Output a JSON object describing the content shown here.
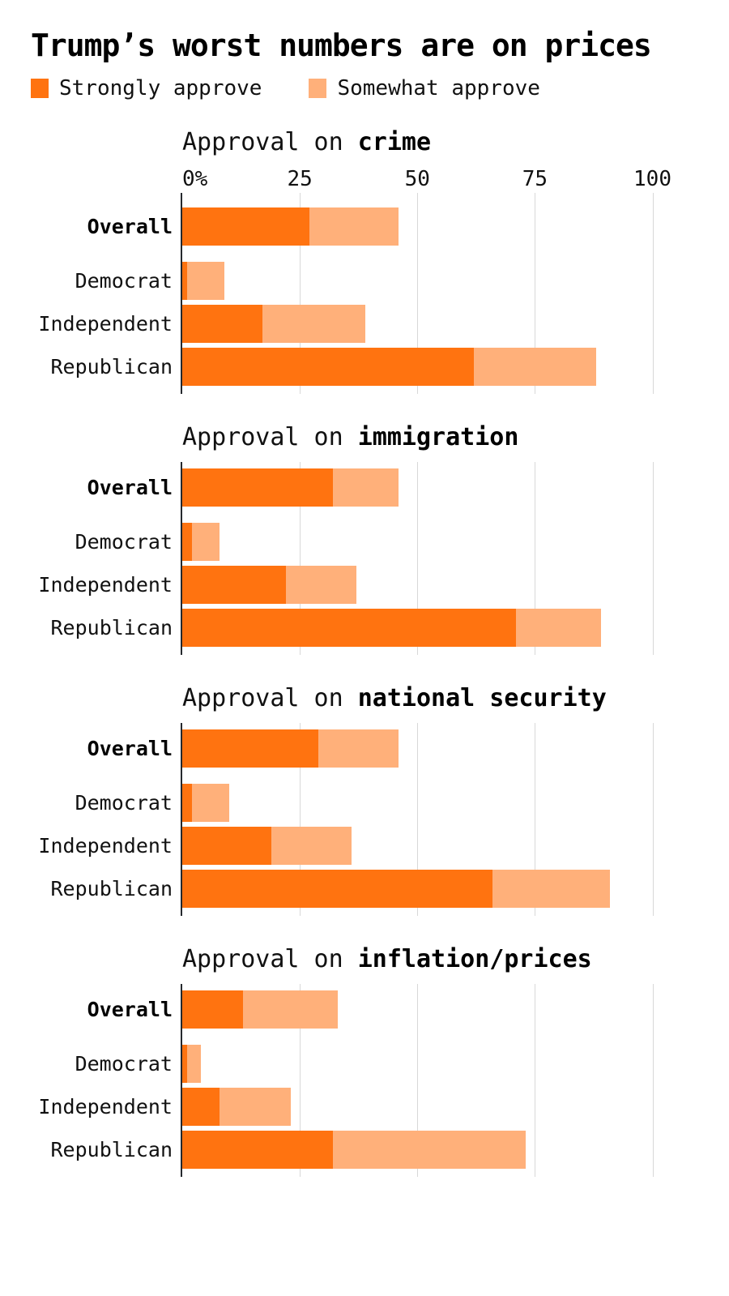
{
  "page": {
    "title": "Trump’s worst numbers are on prices"
  },
  "legend": {
    "items": [
      {
        "key": "strongly",
        "label": "Strongly approve",
        "color": "#ff7310"
      },
      {
        "key": "somewhat",
        "label": "Somewhat approve",
        "color": "#ffb07a"
      }
    ]
  },
  "colors": {
    "strongly": "#ff7310",
    "somewhat": "#ffb07a",
    "axis_line": "#25292e",
    "gridline": "#d8d8d8"
  },
  "axis": {
    "max": 100,
    "ticks": [
      {
        "value": 0,
        "label": "0%"
      },
      {
        "value": 25,
        "label": "25"
      },
      {
        "value": 50,
        "label": "50"
      },
      {
        "value": 75,
        "label": "75"
      },
      {
        "value": 100,
        "label": "100"
      }
    ]
  },
  "chart_data": [
    {
      "type": "bar",
      "orientation": "horizontal",
      "stacked": true,
      "title_prefix": "Approval on ",
      "topic": "crime",
      "categories": [
        "Overall",
        "Democrat",
        "Independent",
        "Republican"
      ],
      "series": [
        {
          "name": "Strongly approve",
          "values": [
            27,
            1,
            17,
            62
          ]
        },
        {
          "name": "Somewhat approve",
          "values": [
            19,
            8,
            22,
            26
          ]
        }
      ],
      "totals": [
        46,
        9,
        39,
        88
      ],
      "xlim": [
        0,
        100
      ],
      "show_axis_labels": true,
      "grid": true
    },
    {
      "type": "bar",
      "orientation": "horizontal",
      "stacked": true,
      "title_prefix": "Approval on ",
      "topic": "immigration",
      "categories": [
        "Overall",
        "Democrat",
        "Independent",
        "Republican"
      ],
      "series": [
        {
          "name": "Strongly approve",
          "values": [
            32,
            2,
            22,
            71
          ]
        },
        {
          "name": "Somewhat approve",
          "values": [
            14,
            6,
            15,
            18
          ]
        }
      ],
      "totals": [
        46,
        8,
        37,
        89
      ],
      "xlim": [
        0,
        100
      ],
      "show_axis_labels": false,
      "grid": true
    },
    {
      "type": "bar",
      "orientation": "horizontal",
      "stacked": true,
      "title_prefix": "Approval on ",
      "topic": "national security",
      "categories": [
        "Overall",
        "Democrat",
        "Independent",
        "Republican"
      ],
      "series": [
        {
          "name": "Strongly approve",
          "values": [
            29,
            2,
            19,
            66
          ]
        },
        {
          "name": "Somewhat approve",
          "values": [
            17,
            8,
            17,
            25
          ]
        }
      ],
      "totals": [
        46,
        10,
        36,
        91
      ],
      "xlim": [
        0,
        100
      ],
      "show_axis_labels": false,
      "grid": true
    },
    {
      "type": "bar",
      "orientation": "horizontal",
      "stacked": true,
      "title_prefix": "Approval on ",
      "topic": "inflation/prices",
      "categories": [
        "Overall",
        "Democrat",
        "Independent",
        "Republican"
      ],
      "series": [
        {
          "name": "Strongly approve",
          "values": [
            13,
            1,
            8,
            32
          ]
        },
        {
          "name": "Somewhat approve",
          "values": [
            20,
            3,
            15,
            41
          ]
        }
      ],
      "totals": [
        33,
        4,
        23,
        73
      ],
      "xlim": [
        0,
        100
      ],
      "show_axis_labels": false,
      "grid": true
    }
  ]
}
